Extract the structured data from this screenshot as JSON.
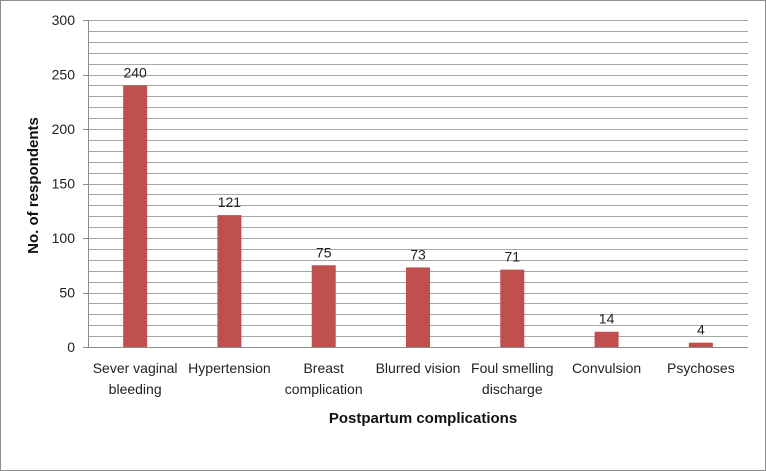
{
  "chart_data": {
    "type": "bar",
    "title": "",
    "xlabel": "Postpartum complications",
    "ylabel": "No. of respondents",
    "ylim": [
      0,
      300
    ],
    "yticks": [
      0,
      50,
      100,
      150,
      200,
      250,
      300
    ],
    "categories": [
      [
        "Sever vaginal",
        "bleeding"
      ],
      [
        "Hypertension"
      ],
      [
        "Breast",
        "complication"
      ],
      [
        "Blurred vision"
      ],
      [
        "Foul smelling",
        "discharge"
      ],
      [
        "Convulsion"
      ],
      [
        "Psychoses"
      ]
    ],
    "values": [
      240,
      121,
      75,
      73,
      71,
      14,
      4
    ],
    "bar_color": "#c0504d",
    "grid": true,
    "minor_grid_step": 10
  }
}
